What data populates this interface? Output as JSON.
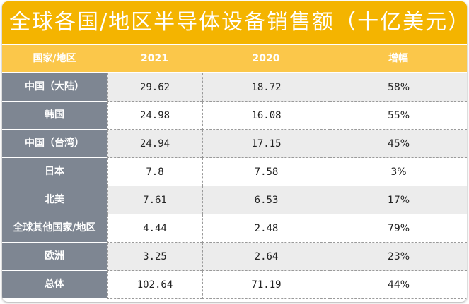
{
  "chart_data": {
    "type": "table",
    "title": "全球各国/地区半导体设备销售额（十亿美元）",
    "columns": [
      "国家/地区",
      "2021",
      "2020",
      "增幅"
    ],
    "rows": [
      {
        "region": "中国（大陆）",
        "y2021": "29.62",
        "y2020": "18.72",
        "growth": "58%"
      },
      {
        "region": "韩国",
        "y2021": "24.98",
        "y2020": "16.08",
        "growth": "55%"
      },
      {
        "region": "中国（台湾）",
        "y2021": "24.94",
        "y2020": "17.15",
        "growth": "45%"
      },
      {
        "region": "日本",
        "y2021": "7.8",
        "y2020": "7.58",
        "growth": "3%"
      },
      {
        "region": "北美",
        "y2021": "7.61",
        "y2020": "6.53",
        "growth": "17%"
      },
      {
        "region": "全球其他国家/地区",
        "y2021": "4.44",
        "y2020": "2.48",
        "growth": "79%"
      },
      {
        "region": "欧洲",
        "y2021": "3.25",
        "y2020": "2.64",
        "growth": "23%"
      },
      {
        "region": "总体",
        "y2021": "102.64",
        "y2020": "71.19",
        "growth": "44%"
      }
    ]
  },
  "colors": {
    "title_bg": "#f4b400",
    "header_bg": "#fbc74a",
    "label_bg": "#7e8692",
    "stripe_bg": "#ececec"
  }
}
